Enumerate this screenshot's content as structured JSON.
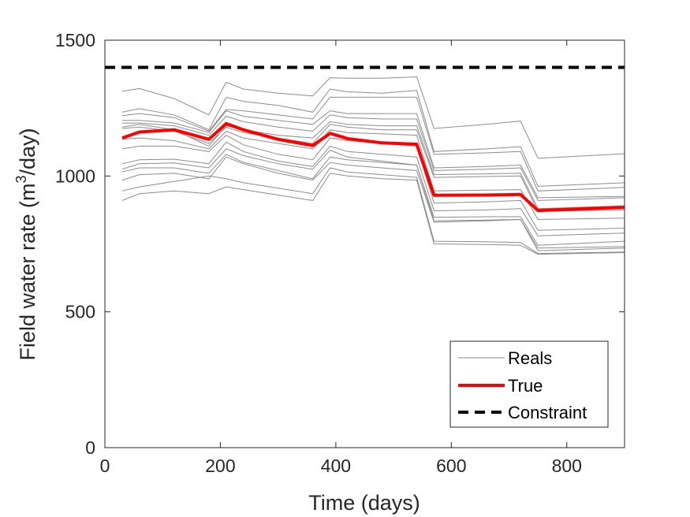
{
  "chart_data": {
    "type": "line",
    "title": "",
    "xlabel": "Time (days)",
    "ylabel_prefix": "Field water rate (m",
    "ylabel_sup": "3",
    "ylabel_suffix": "/day)",
    "xlim": [
      0,
      900
    ],
    "ylim": [
      0,
      1500
    ],
    "xticks": [
      0,
      200,
      400,
      600,
      800
    ],
    "yticks": [
      0,
      500,
      1000,
      1500
    ],
    "grid": false,
    "legend_position": "bottom-right",
    "legend": [
      {
        "label": "Reals",
        "style": "thin-gray"
      },
      {
        "label": "True",
        "style": "thick-red"
      },
      {
        "label": "Constraint",
        "style": "dashed-black"
      }
    ],
    "colors": {
      "reals": "#8c8c8c",
      "true": "#ff0000",
      "constraint": "#000000",
      "axis": "#262626"
    },
    "x": [
      30,
      60,
      120,
      180,
      210,
      240,
      300,
      360,
      390,
      420,
      480,
      540,
      570,
      660,
      720,
      750,
      900
    ],
    "series": [
      {
        "name": "True",
        "role": "true",
        "values": [
          1140,
          1162,
          1170,
          1135,
          1193,
          1170,
          1135,
          1112,
          1157,
          1138,
          1122,
          1117,
          929,
          930,
          932,
          873,
          885
        ]
      },
      {
        "name": "Constraint",
        "role": "constraint",
        "x": [
          0,
          900
        ],
        "values": [
          1400,
          1400
        ]
      },
      {
        "name": "Real 1",
        "role": "real",
        "values": [
          1312,
          1322,
          1285,
          1225,
          1345,
          1320,
          1305,
          1295,
          1362,
          1360,
          1360,
          1365,
          1175,
          1190,
          1202,
          1065,
          1082
        ]
      },
      {
        "name": "Real 2",
        "role": "real",
        "values": [
          1235,
          1248,
          1225,
          1170,
          1290,
          1275,
          1260,
          1235,
          1320,
          1310,
          1305,
          1315,
          1090,
          1100,
          1108,
          962,
          975
        ]
      },
      {
        "name": "Real 3",
        "role": "real",
        "values": [
          1222,
          1230,
          1215,
          1165,
          1245,
          1240,
          1225,
          1210,
          1290,
          1290,
          1290,
          1290,
          1080,
          1085,
          1090,
          945,
          958
        ]
      },
      {
        "name": "Real 4",
        "role": "real",
        "values": [
          1205,
          1205,
          1195,
          1160,
          1240,
          1220,
          1205,
          1190,
          1240,
          1230,
          1230,
          1230,
          1030,
          1035,
          1040,
          920,
          925
        ]
      },
      {
        "name": "Real 5",
        "role": "real",
        "values": [
          1195,
          1195,
          1185,
          1150,
          1220,
          1200,
          1180,
          1165,
          1225,
          1215,
          1210,
          1210,
          1020,
          1025,
          1030,
          910,
          920
        ]
      },
      {
        "name": "Real 6",
        "role": "real",
        "values": [
          1180,
          1190,
          1170,
          1110,
          1185,
          1170,
          1150,
          1140,
          1200,
          1190,
          1185,
          1185,
          1005,
          1008,
          1010,
          880,
          890
        ]
      },
      {
        "name": "Real 7",
        "role": "real",
        "values": [
          1175,
          1180,
          1165,
          1120,
          1180,
          1160,
          1140,
          1120,
          1190,
          1180,
          1170,
          1170,
          995,
          998,
          1000,
          870,
          875
        ]
      },
      {
        "name": "Real 8",
        "role": "real",
        "values": [
          1135,
          1140,
          1130,
          1100,
          1165,
          1140,
          1120,
          1100,
          1170,
          1160,
          1155,
          1150,
          945,
          948,
          950,
          840,
          845
        ]
      },
      {
        "name": "Real 9",
        "role": "real",
        "values": [
          1100,
          1110,
          1110,
          1090,
          1150,
          1115,
          1080,
          1060,
          1140,
          1130,
          1120,
          1110,
          900,
          905,
          910,
          800,
          808
        ]
      },
      {
        "name": "Real 10",
        "role": "real",
        "values": [
          1045,
          1060,
          1062,
          1045,
          1125,
          1090,
          1055,
          1035,
          1110,
          1090,
          1080,
          1070,
          872,
          875,
          880,
          780,
          790
        ]
      },
      {
        "name": "Real 11",
        "role": "real",
        "values": [
          1025,
          1045,
          1048,
          1030,
          1100,
          1075,
          1045,
          1025,
          1095,
          1070,
          1055,
          1040,
          848,
          850,
          850,
          745,
          760
        ]
      },
      {
        "name": "Real 12",
        "role": "real",
        "values": [
          1015,
          1030,
          1030,
          1010,
          1080,
          1050,
          1020,
          990,
          1070,
          1060,
          1050,
          1040,
          835,
          838,
          840,
          735,
          740
        ]
      },
      {
        "name": "Real 13",
        "role": "real",
        "values": [
          985,
          1005,
          1010,
          990,
          1070,
          1045,
          1010,
          985,
          1050,
          1040,
          1030,
          1020,
          830,
          835,
          840,
          725,
          735
        ]
      },
      {
        "name": "Real 14",
        "role": "real",
        "values": [
          945,
          960,
          980,
          1000,
          990,
          975,
          955,
          935,
          1030,
          1015,
          1005,
          995,
          760,
          758,
          755,
          715,
          720
        ]
      },
      {
        "name": "Real 15",
        "role": "real",
        "values": [
          910,
          935,
          945,
          935,
          960,
          950,
          930,
          910,
          1010,
          1000,
          990,
          985,
          750,
          748,
          745,
          712,
          718
        ]
      }
    ]
  }
}
